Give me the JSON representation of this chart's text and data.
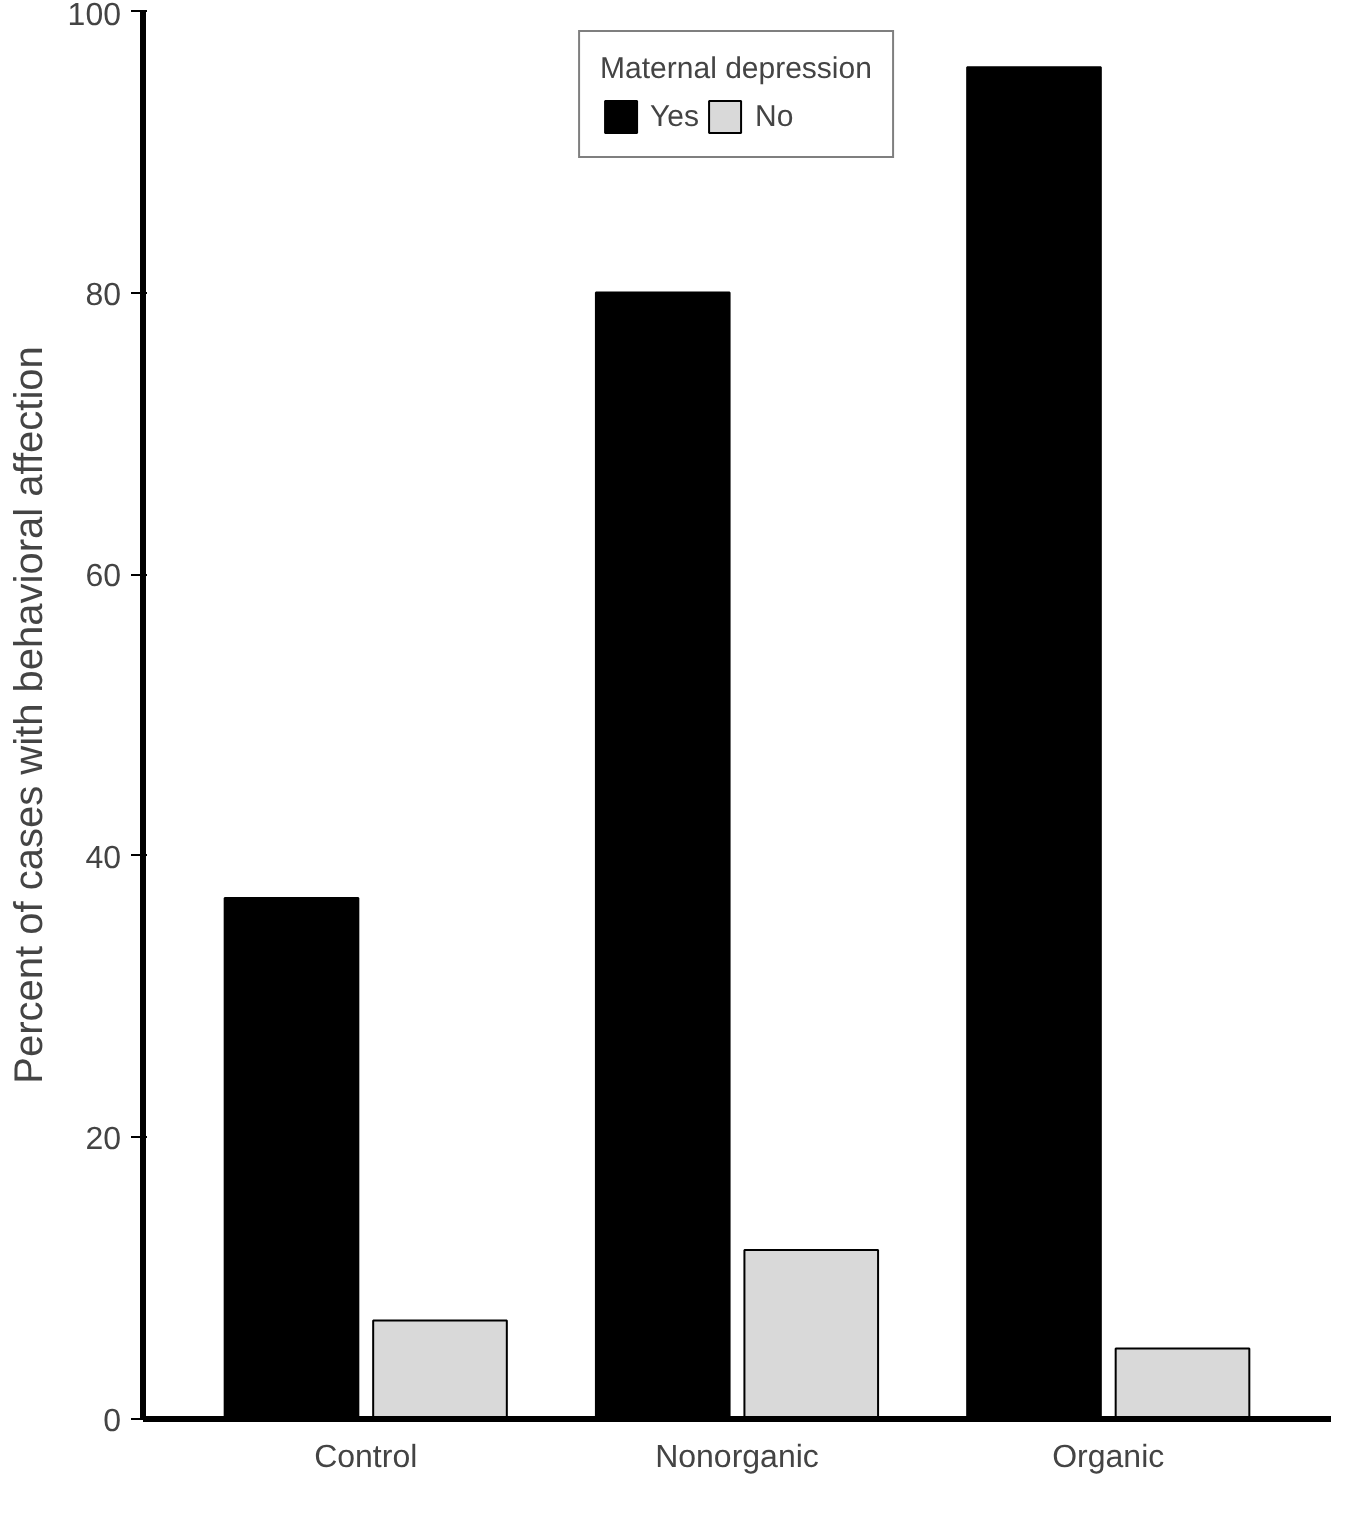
{
  "chart_data": {
    "type": "bar",
    "ylabel": "Percent of cases with behavioral affection",
    "legend_title": "Maternal depression",
    "categories": [
      "Control",
      "Nonorganic",
      "Organic"
    ],
    "series": [
      {
        "name": "Yes",
        "color": "#000000",
        "values": [
          37,
          80,
          96
        ]
      },
      {
        "name": "No",
        "color": "#d9d9d9",
        "values": [
          7,
          12,
          5
        ]
      }
    ],
    "ylim": [
      0,
      100
    ],
    "yticks": [
      0,
      20,
      40,
      60,
      80,
      100
    ],
    "grid": false,
    "legend": "top"
  }
}
